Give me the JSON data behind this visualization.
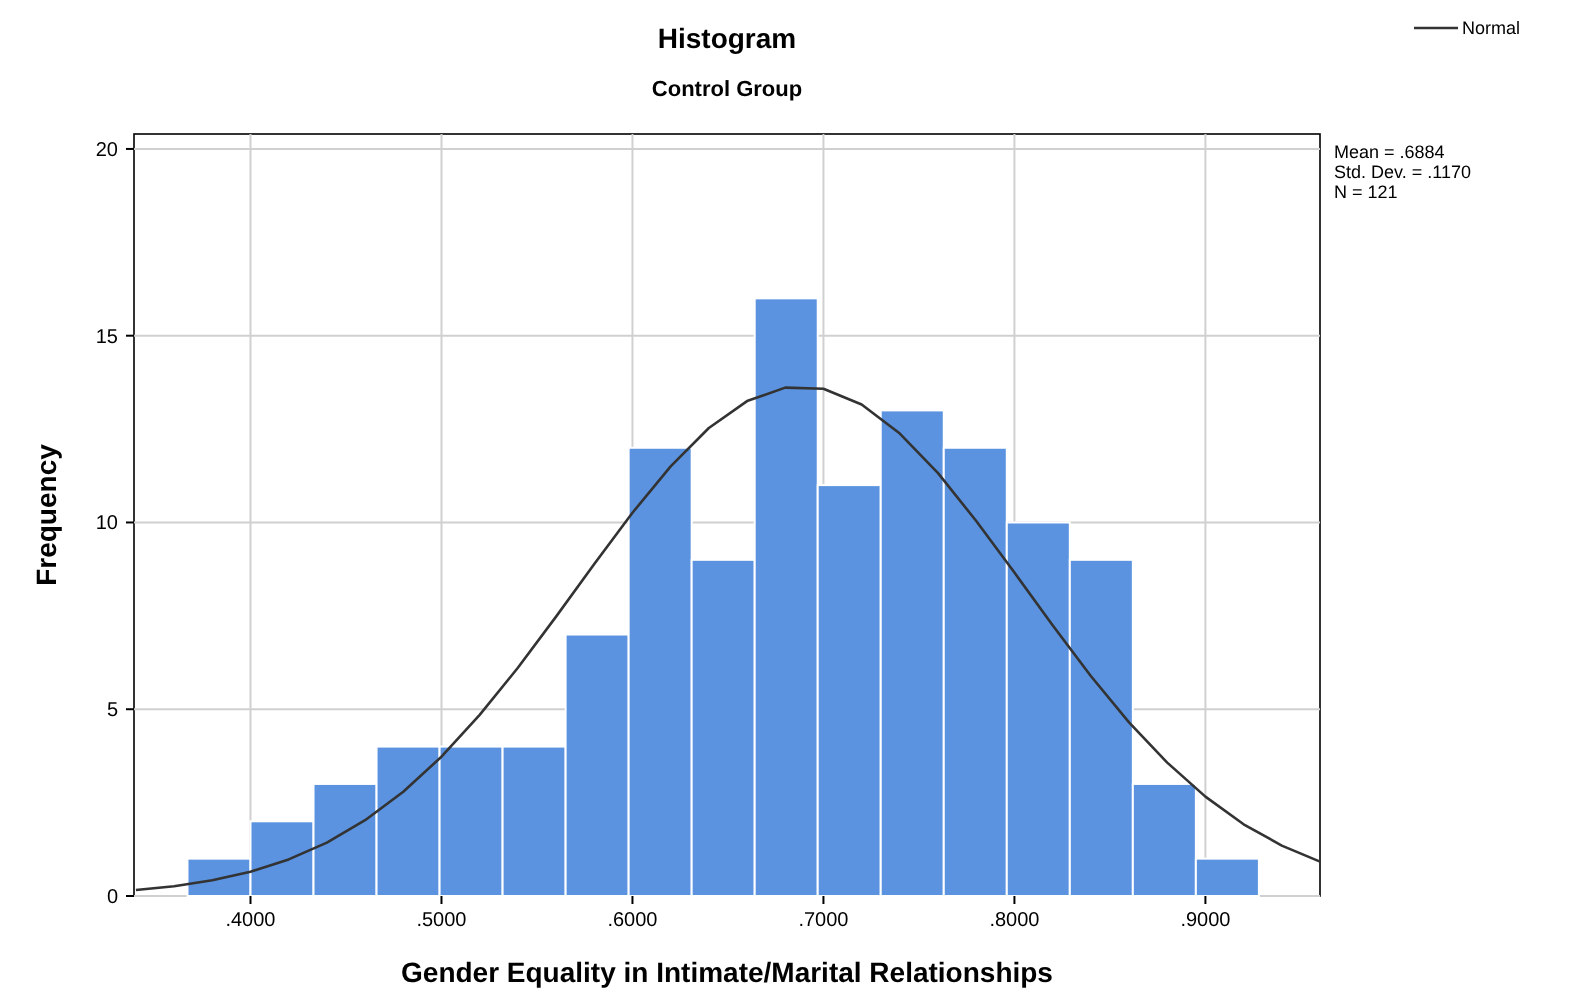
{
  "chart_data": {
    "type": "histogram",
    "title": "Histogram",
    "subtitle": "Control Group",
    "xlabel": "Gender Equality in Intimate/Marital Relationships",
    "ylabel": "Frequency",
    "bins": [
      0.367,
      0.4,
      0.433,
      0.466,
      0.499,
      0.532,
      0.565,
      0.598,
      0.631,
      0.664,
      0.697,
      0.73,
      0.763,
      0.796,
      0.829,
      0.862,
      0.895,
      0.928
    ],
    "series": [
      {
        "color": "#5b93e0",
        "values": [
          1,
          2,
          3,
          4,
          4,
          4,
          7,
          12,
          9,
          16,
          11,
          13,
          12,
          10,
          9,
          3,
          1
        ]
      },
      {
        "type": "line",
        "name": "Normal",
        "color": "#333333",
        "x": [
          0.34,
          0.36,
          0.38,
          0.4,
          0.42,
          0.44,
          0.46,
          0.48,
          0.5,
          0.52,
          0.54,
          0.56,
          0.58,
          0.6,
          0.62,
          0.64,
          0.66,
          0.68,
          0.7,
          0.72,
          0.74,
          0.76,
          0.78,
          0.8,
          0.82,
          0.84,
          0.86,
          0.88,
          0.9,
          0.92,
          0.94,
          0.96
        ],
        "values": [
          0.16,
          0.26,
          0.42,
          0.65,
          0.98,
          1.43,
          2.03,
          2.79,
          3.73,
          4.85,
          6.11,
          7.48,
          8.89,
          10.26,
          11.5,
          12.53,
          13.25,
          13.61,
          13.58,
          13.16,
          12.38,
          11.32,
          10.04,
          8.66,
          7.25,
          5.89,
          4.65,
          3.57,
          2.66,
          1.92,
          1.35,
          0.92
        ]
      }
    ],
    "xlim": [
      0.339,
      0.96
    ],
    "ylim": [
      0,
      20.4
    ],
    "xticks": [
      {
        "value": 0.4,
        "label": ".4000"
      },
      {
        "value": 0.5,
        "label": ".5000"
      },
      {
        "value": 0.6,
        "label": ".6000"
      },
      {
        "value": 0.7,
        "label": ".7000"
      },
      {
        "value": 0.8,
        "label": ".8000"
      },
      {
        "value": 0.9,
        "label": ".9000"
      }
    ],
    "yticks": [
      0,
      5,
      10,
      15,
      20
    ],
    "annotations": [
      "Mean = .6884",
      "Std. Dev. = .1170",
      "N = 121"
    ],
    "grid": true,
    "legend": "top right"
  }
}
